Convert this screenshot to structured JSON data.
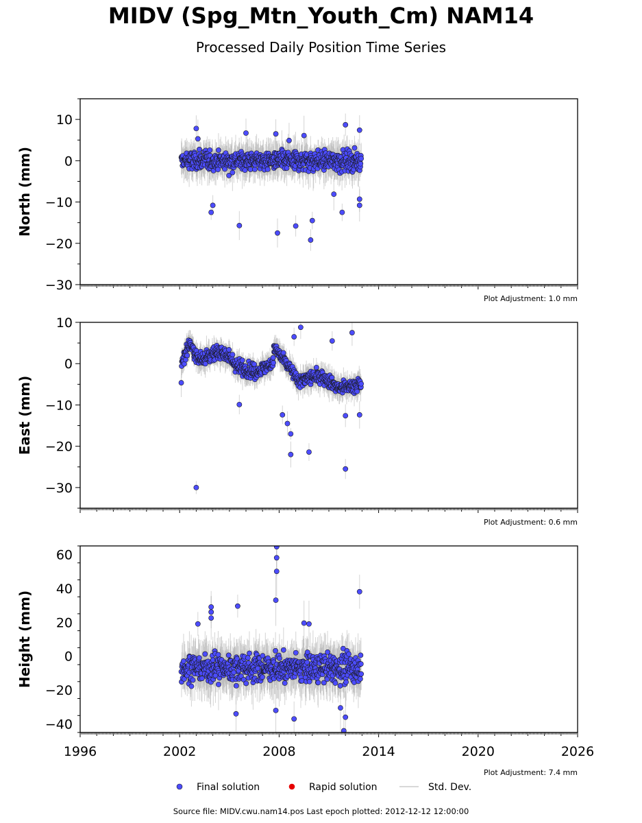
{
  "header": {
    "title": "MIDV (Spg_Mtn_Youth_Cm) NAM14",
    "subtitle": "Processed Daily Position Time Series"
  },
  "footer": {
    "source_label": "Source file:",
    "source_file": "MIDV.cwu.nam14.pos",
    "last_epoch_label": "Last epoch plotted:",
    "last_epoch": "2012-12-12 12:00:00",
    "text": "Source file: MIDV.cwu.nam14.pos  Last epoch plotted: 2012-12-12 12:00:00"
  },
  "legend": {
    "items": [
      {
        "label": "Final solution",
        "color": "#4c4cff",
        "marker": "circle"
      },
      {
        "label": "Rapid solution",
        "color": "#e60000",
        "marker": "circle"
      },
      {
        "label": "Std. Dev.",
        "color": "#cccccc",
        "marker": "line"
      }
    ]
  },
  "colors": {
    "final_fill": "#4c4cff",
    "final_edge": "#1a1a1a",
    "errorbar": "#b0b0b0"
  },
  "chart_data": [
    {
      "type": "scatter",
      "panel": "north",
      "ylabel": "North (mm)",
      "ylim": [
        -30,
        15
      ],
      "yticks": [
        10,
        0,
        -10,
        -20,
        -30
      ],
      "ytick_labels": [
        "10",
        "0",
        "−10",
        "−20",
        "−30"
      ],
      "xlim": [
        1996,
        2026
      ],
      "adjustment": "Plot Adjustment: 1.0 mm",
      "data_span": [
        2002.1,
        2012.95
      ],
      "scatter_sigma": 2.2,
      "outliers": [
        [
          2003.0,
          7.8
        ],
        [
          2003.1,
          5.3
        ],
        [
          2003.9,
          -12.5
        ],
        [
          2004.0,
          -10.8
        ],
        [
          2005.6,
          -15.7
        ],
        [
          2006.0,
          6.7
        ],
        [
          2007.9,
          -17.5
        ],
        [
          2007.8,
          6.5
        ],
        [
          2008.6,
          4.9
        ],
        [
          2009.0,
          -15.8
        ],
        [
          2009.5,
          6.1
        ],
        [
          2009.9,
          -19.2
        ],
        [
          2010.0,
          -14.5
        ],
        [
          2011.3,
          -8.1
        ],
        [
          2011.8,
          -12.5
        ],
        [
          2012.0,
          8.7
        ],
        [
          2012.85,
          7.4
        ],
        [
          2012.85,
          -10.8
        ],
        [
          2012.85,
          -9.3
        ]
      ],
      "series": [
        {
          "name": "Final solution"
        }
      ]
    },
    {
      "type": "scatter",
      "panel": "east",
      "ylabel": "East (mm)",
      "ylim": [
        -35,
        10
      ],
      "yticks": [
        10,
        0,
        -10,
        -20,
        -30
      ],
      "ytick_labels": [
        "10",
        "0",
        "−10",
        "−20",
        "−30"
      ],
      "xlim": [
        1996,
        2026
      ],
      "adjustment": "Plot Adjustment: 0.6 mm",
      "data_span": [
        2002.1,
        2012.95
      ],
      "trend": [
        [
          2002.1,
          0
        ],
        [
          2002.6,
          5
        ],
        [
          2003.1,
          1
        ],
        [
          2004.6,
          3
        ],
        [
          2005.6,
          -1
        ],
        [
          2006.6,
          -2
        ],
        [
          2007.6,
          0
        ],
        [
          2007.7,
          4
        ],
        [
          2008.6,
          -1
        ],
        [
          2009.1,
          -4
        ],
        [
          2010.6,
          -3
        ],
        [
          2011.6,
          -6
        ],
        [
          2012.95,
          -5
        ]
      ],
      "scatter_sigma": 1.6,
      "outliers": [
        [
          2003.0,
          -30.0
        ],
        [
          2005.6,
          -9.9
        ],
        [
          2008.2,
          -12.4
        ],
        [
          2008.7,
          -17.0
        ],
        [
          2008.7,
          -22.0
        ],
        [
          2008.9,
          6.5
        ],
        [
          2009.3,
          8.8
        ],
        [
          2009.8,
          -21.4
        ],
        [
          2011.2,
          5.5
        ],
        [
          2012.0,
          -25.5
        ],
        [
          2012.4,
          7.5
        ],
        [
          2012.85,
          -12.4
        ],
        [
          2012.0,
          -12.6
        ],
        [
          2008.5,
          -14.5
        ]
      ],
      "series": [
        {
          "name": "Final solution"
        }
      ]
    },
    {
      "type": "scatter",
      "panel": "height",
      "ylabel": "Height (mm)",
      "ylim": [
        -45,
        65
      ],
      "yticks": [
        60,
        40,
        20,
        0,
        -20,
        -40
      ],
      "ytick_labels": [
        "60",
        "40",
        "20",
        "0",
        "−20",
        "−40"
      ],
      "xlim": [
        1996,
        2026
      ],
      "xticks": [
        1996,
        2002,
        2008,
        2014,
        2020,
        2026
      ],
      "xtick_labels": [
        "1996",
        "2002",
        "2008",
        "2014",
        "2020",
        "2026"
      ],
      "adjustment": "Plot Adjustment: 7.4 mm",
      "data_span": [
        2002.1,
        2012.95
      ],
      "trend": [
        [
          2002.1,
          -7
        ],
        [
          2012.95,
          -7
        ]
      ],
      "scatter_sigma": 7.5,
      "outliers": [
        [
          2007.85,
          64.5
        ],
        [
          2007.85,
          58.0
        ],
        [
          2007.85,
          50.0
        ],
        [
          2007.8,
          33.0
        ],
        [
          2005.5,
          29.5
        ],
        [
          2003.9,
          29.0
        ],
        [
          2003.9,
          26.0
        ],
        [
          2003.9,
          22.5
        ],
        [
          2012.85,
          38.0
        ],
        [
          2009.5,
          19.5
        ],
        [
          2009.8,
          19.0
        ],
        [
          2008.9,
          -37.0
        ],
        [
          2011.9,
          -44.0
        ],
        [
          2011.7,
          -30.5
        ],
        [
          2012.0,
          -36.0
        ],
        [
          2005.4,
          -34.0
        ],
        [
          2007.8,
          -32.0
        ],
        [
          2003.1,
          19.0
        ]
      ],
      "series": [
        {
          "name": "Final solution"
        }
      ]
    }
  ]
}
